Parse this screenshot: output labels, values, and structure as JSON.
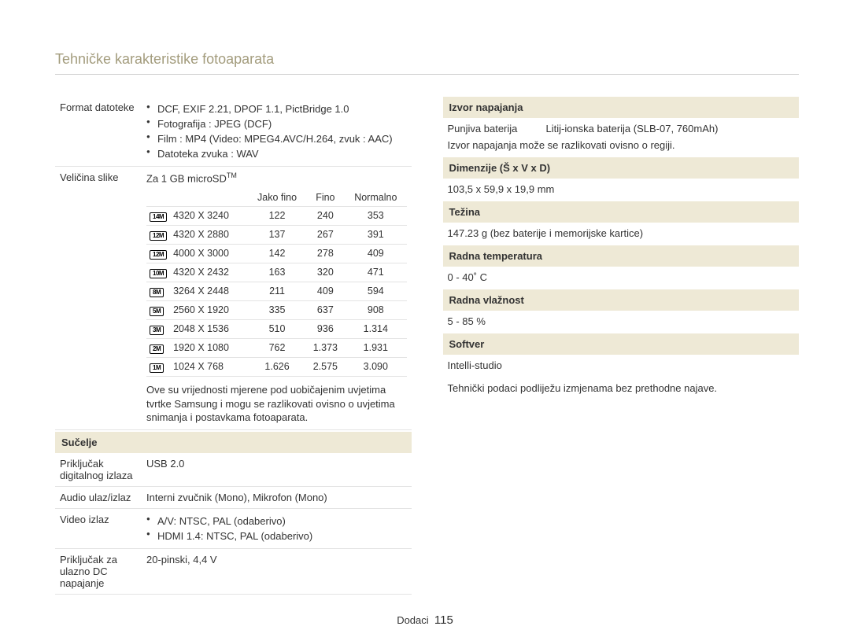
{
  "title": "Tehničke karakteristike fotoaparata",
  "left": {
    "format": {
      "label": "Format datoteke",
      "items": [
        "DCF, EXIF 2.21, DPOF 1.1, PictBridge 1.0",
        "Fotografija : JPEG (DCF)",
        "Film : MP4 (Video: MPEG4.AVC/H.264, zvuk : AAC)",
        "Datoteka zvuka : WAV"
      ]
    },
    "size": {
      "label": "Veličina slike",
      "lead_prefix": "Za 1 GB microSD",
      "lead_tm": "TM",
      "columns": [
        "Jako fino",
        "Fino",
        "Normalno"
      ],
      "rows": [
        {
          "icon": "14M",
          "res": "4320 X 3240",
          "v": [
            "122",
            "240",
            "353"
          ]
        },
        {
          "icon": "12M",
          "res": "4320 X 2880",
          "v": [
            "137",
            "267",
            "391"
          ]
        },
        {
          "icon": "12M",
          "res": "4000 X 3000",
          "v": [
            "142",
            "278",
            "409"
          ]
        },
        {
          "icon": "10M",
          "res": "4320 X 2432",
          "v": [
            "163",
            "320",
            "471"
          ]
        },
        {
          "icon": "8M",
          "res": "3264 X 2448",
          "v": [
            "211",
            "409",
            "594"
          ]
        },
        {
          "icon": "5M",
          "res": "2560 X 1920",
          "v": [
            "335",
            "637",
            "908"
          ]
        },
        {
          "icon": "3M",
          "res": "2048 X 1536",
          "v": [
            "510",
            "936",
            "1.314"
          ]
        },
        {
          "icon": "2M",
          "res": "1920 X 1080",
          "v": [
            "762",
            "1.373",
            "1.931"
          ]
        },
        {
          "icon": "1M",
          "res": "1024 X 768",
          "v": [
            "1.626",
            "2.575",
            "3.090"
          ]
        }
      ],
      "note": "Ove su vrijednosti mjerene pod uobičajenim uvjetima tvrtke Samsung i mogu se razlikovati ovisno o uvjetima snimanja i postavkama fotoaparata."
    },
    "interface": {
      "header": "Sučelje",
      "rows": [
        {
          "label": "Priključak digitalnog izlaza",
          "text": "USB 2.0"
        },
        {
          "label": "Audio ulaz/izlaz",
          "text": "Interni zvučnik (Mono), Mikrofon (Mono)"
        },
        {
          "label": "Video izlaz",
          "bullets": [
            "A/V: NTSC, PAL (odaberivo)",
            "HDMI 1.4: NTSC, PAL (odaberivo)"
          ]
        },
        {
          "label": "Priključak za ulazno DC napajanje",
          "text": "20-pinski, 4,4 V"
        }
      ]
    }
  },
  "right": {
    "sections": [
      {
        "header": "Izvor napajanja",
        "kv": {
          "label": "Punjiva baterija",
          "value": "Litij-ionska baterija (SLB-07, 760mAh)"
        },
        "note": "Izvor napajanja može se razlikovati ovisno o regiji."
      },
      {
        "header": "Dimenzije (Š x V x D)",
        "text": "103,5 x 59,9 x 19,9 mm"
      },
      {
        "header": "Težina",
        "text": "147.23 g (bez baterije i memorijske kartice)"
      },
      {
        "header": "Radna temperatura",
        "text": "0 - 40˚ C"
      },
      {
        "header": "Radna vlažnost",
        "text": "5 - 85 %"
      },
      {
        "header": "Softver",
        "text": "Intelli-studio"
      }
    ],
    "footnote": "Tehnički podaci podliježu izmjenama bez prethodne najave."
  },
  "footer": {
    "section": "Dodaci",
    "page": "115"
  },
  "colors": {
    "title": "#a39c7d",
    "head_bg": "#eee9d6",
    "rule": "#e3e3e3",
    "text": "#333333"
  }
}
